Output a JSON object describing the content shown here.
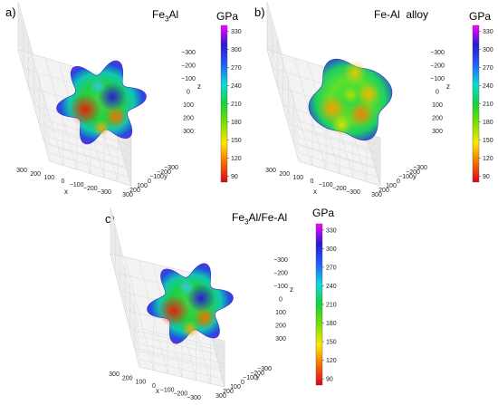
{
  "chart_data": [
    {
      "type": "surface3d",
      "panel_label": "a)",
      "title": "Fe3Al",
      "title_main": "Fe",
      "title_sub": "3",
      "title_rest": "Al",
      "colorbar": {
        "title": "GPa",
        "ticks": [
          90,
          120,
          150,
          180,
          210,
          240,
          270,
          300,
          330
        ],
        "range": [
          80,
          340
        ]
      },
      "x_ticks": [
        "300",
        "200",
        "100",
        "0",
        "−100",
        "−200",
        "−300"
      ],
      "y_ticks": [
        "−300",
        "−200",
        "−100",
        "0",
        "100",
        "200",
        "300"
      ],
      "z_ticks": [
        "−300",
        "−200",
        "−100",
        "0",
        "100",
        "200",
        "300"
      ],
      "xlabel": "x",
      "ylabel": "y",
      "zlabel": "z"
    },
    {
      "type": "surface3d",
      "panel_label": "b)",
      "title": "Fe-Al  alloy",
      "colorbar": {
        "title": "GPa",
        "ticks": [
          90,
          120,
          150,
          180,
          210,
          240,
          270,
          300,
          330
        ],
        "range": [
          80,
          340
        ]
      },
      "x_ticks": [
        "300",
        "200",
        "100",
        "0",
        "−100",
        "−200",
        "−300"
      ],
      "y_ticks": [
        "−300",
        "−200",
        "−100",
        "0",
        "100",
        "200",
        "300"
      ],
      "z_ticks": [
        "−300",
        "−200",
        "−100",
        "0",
        "100",
        "200",
        "300"
      ],
      "xlabel": "x",
      "ylabel": "y",
      "zlabel": "z"
    },
    {
      "type": "surface3d",
      "panel_label": "c)",
      "title": "Fe3Al/Fe-Al",
      "title_main": "Fe",
      "title_sub": "3",
      "title_rest": "Al/Fe-Al",
      "colorbar": {
        "title": "GPa",
        "ticks": [
          90,
          120,
          150,
          180,
          210,
          240,
          270,
          300,
          330
        ],
        "range": [
          80,
          340
        ]
      },
      "x_ticks": [
        "300",
        "200",
        "100",
        "0",
        "−100",
        "−200",
        "−300"
      ],
      "y_ticks": [
        "−300",
        "−200",
        "−100",
        "0",
        "100",
        "200",
        "300"
      ],
      "z_ticks": [
        "−300",
        "−200",
        "−100",
        "0",
        "100",
        "200",
        "300"
      ],
      "xlabel": "x",
      "ylabel": "y",
      "zlabel": "z"
    }
  ],
  "colors": {
    "colormap": [
      "#e0001c",
      "#f57000",
      "#ffe600",
      "#7be000",
      "#17d13a",
      "#10d8d8",
      "#2060ff",
      "#2a1ad0",
      "#ff00ff"
    ]
  }
}
